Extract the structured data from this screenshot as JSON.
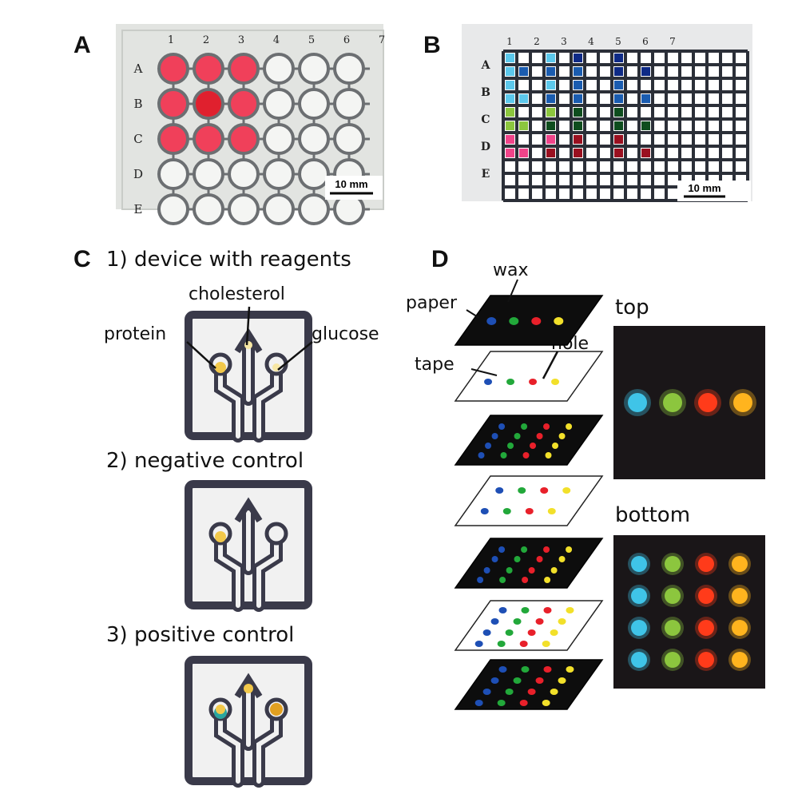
{
  "panels": {
    "a": {
      "letter": "A",
      "columns": [
        "1",
        "2",
        "3",
        "4",
        "5",
        "6",
        "7"
      ],
      "rows": [
        "A",
        "B",
        "C",
        "D",
        "E"
      ],
      "scale_label": "10 mm",
      "well_color": "#f0405a",
      "plate_color": "#e2e4e1"
    },
    "b": {
      "letter": "B",
      "columns": [
        "1",
        "2",
        "3",
        "4",
        "5",
        "6",
        "7"
      ],
      "rows": [
        "A",
        "B",
        "C",
        "D",
        "E"
      ],
      "scale_label": "10 mm",
      "grid_color": "#2b2f38",
      "well_colors": {
        "cyan": "#5cc8ec",
        "blue": "#1a5cb0",
        "darkblue": "#0e2a86",
        "green": "#8cc63e",
        "darkgreen": "#0e4d1e",
        "pink": "#f0448a",
        "darkred": "#9a1020"
      }
    },
    "c": {
      "letter": "C",
      "titles": [
        "1) device with reagents",
        "2) negative control",
        "3) positive control"
      ],
      "annotations": {
        "cholesterol": "cholesterol",
        "protein": "protein",
        "glucose": "glucose"
      },
      "marker_color": "#f2c84a"
    },
    "d": {
      "letter": "D",
      "annotations": {
        "wax": "wax",
        "paper": "paper",
        "tape": "tape",
        "hole": "hole"
      },
      "view_labels": {
        "top": "top",
        "bottom": "bottom"
      },
      "spot_colors": [
        "#3fc4e8",
        "#8cc63e",
        "#ff3b1a",
        "#ffb41e"
      ],
      "layer_spot_colors": [
        "#1e4fb5",
        "#22a83a",
        "#e8202a",
        "#f2e02a"
      ]
    }
  }
}
